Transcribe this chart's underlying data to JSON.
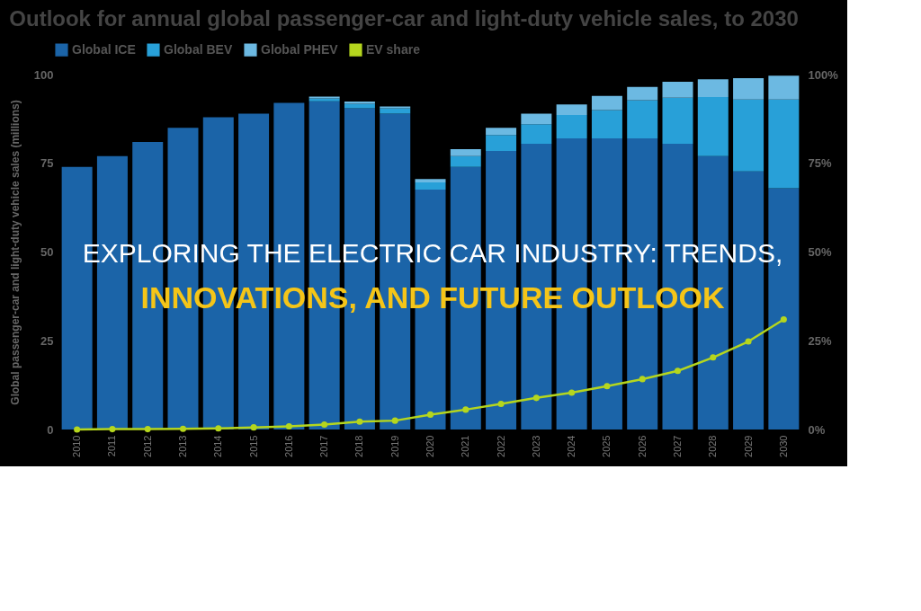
{
  "chart_data": {
    "type": "bar",
    "stacked": true,
    "title": "Outlook for annual global passenger-car and light-duty vehicle sales, to 2030",
    "ylabel": "Global passenger-car and light-duty vehicle sales (millions)",
    "categories": [
      "2010",
      "2011",
      "2012",
      "2013",
      "2014",
      "2015",
      "2016",
      "2017",
      "2018",
      "2019",
      "2020",
      "2021",
      "2022",
      "2023",
      "2024",
      "2025",
      "2026",
      "2027",
      "2028",
      "2029",
      "2030"
    ],
    "series": [
      {
        "name": "Global ICE",
        "color": "#1b64a8",
        "values": [
          74,
          77,
          81,
          85,
          88,
          89,
          92,
          92.5,
          90.5,
          89,
          67.6,
          74,
          78.5,
          80.5,
          82,
          82,
          82,
          80.5,
          77,
          72.7,
          68
        ]
      },
      {
        "name": "Global BEV",
        "color": "#28a0d8",
        "values": [
          null,
          null,
          null,
          null,
          null,
          null,
          null,
          0.8,
          1.3,
          1.5,
          2,
          3,
          4.5,
          5.5,
          6.6,
          8,
          10.8,
          13,
          16.7,
          20.3,
          25
        ]
      },
      {
        "name": "Global PHEV",
        "color": "#6cb9e2",
        "values": [
          null,
          null,
          null,
          null,
          null,
          null,
          null,
          0.5,
          0.6,
          0.5,
          1,
          2,
          2,
          3,
          3,
          4,
          3.7,
          4.5,
          5,
          6,
          6.7
        ]
      },
      {
        "name": "EV share",
        "type": "line",
        "axis": "y2",
        "color": "#b5d61e",
        "values": [
          0,
          0.1,
          0.1,
          0.2,
          0.3,
          0.6,
          0.9,
          1.4,
          2.2,
          2.5,
          4.2,
          5.6,
          7.2,
          8.9,
          10.4,
          12.2,
          14.2,
          16.5,
          20.3,
          24.8,
          31
        ]
      }
    ],
    "ylim": [
      0,
      100
    ],
    "yticks": [
      0,
      25,
      50,
      75,
      100
    ],
    "y2lim": [
      0,
      100
    ],
    "y2ticks": [
      {
        "value": 0,
        "label": "0%"
      },
      {
        "value": 25,
        "label": "25%"
      },
      {
        "value": 50,
        "label": "50%"
      },
      {
        "value": 75,
        "label": "75%"
      },
      {
        "value": 100,
        "label": "100%"
      }
    ],
    "marker": "circle",
    "legend": "top left",
    "grid": false,
    "annotations": [
      "EXPLORING THE ELECTRIC CAR INDUSTRY: TRENDS,",
      "INNOVATIONS, AND FUTURE OUTLOOK"
    ]
  }
}
